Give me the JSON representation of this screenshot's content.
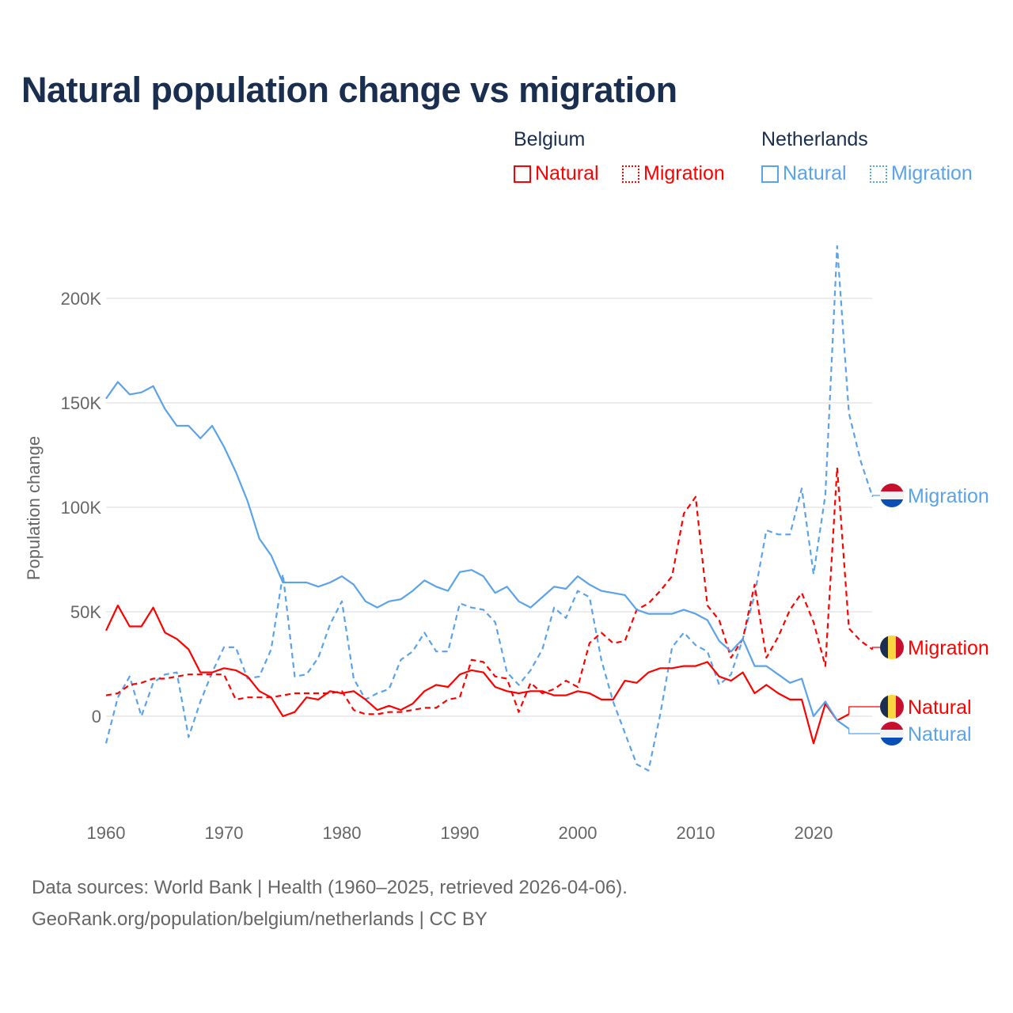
{
  "chart_data": {
    "type": "line",
    "title": "Natural population change vs migration",
    "ylabel": "Population change",
    "xlabel": "",
    "ylim": [
      -40000,
      230000
    ],
    "xlim": [
      1960,
      2025
    ],
    "grid": true,
    "x_ticks": [
      "1960",
      "1970",
      "1980",
      "1990",
      "2000",
      "2010",
      "2020"
    ],
    "y_ticks": [
      {
        "v": 0,
        "label": "0"
      },
      {
        "v": 50000,
        "label": "50K"
      },
      {
        "v": 100000,
        "label": "100K"
      },
      {
        "v": 150000,
        "label": "150K"
      },
      {
        "v": 200000,
        "label": "200K"
      }
    ],
    "legend": {
      "placement": "top-right",
      "groups": [
        {
          "name": "Belgium",
          "items": [
            {
              "label": "Natural",
              "style": "solid"
            },
            {
              "label": "Migration",
              "style": "dotted"
            }
          ],
          "color": "#ff0000"
        },
        {
          "name": "Netherlands",
          "items": [
            {
              "label": "Natural",
              "style": "solid"
            },
            {
              "label": "Migration",
              "style": "dotted"
            }
          ],
          "color": "#5ba3e8"
        }
      ]
    },
    "start_year": 1960,
    "series": [
      {
        "name": "Netherlands Migration",
        "country": "netherlands",
        "label": "Migration",
        "color": "#5ba3e8",
        "dash": true,
        "values": [
          -13,
          9,
          19,
          0,
          16,
          20,
          21,
          -10,
          7,
          21,
          33,
          33,
          18,
          19,
          32,
          68,
          19,
          20,
          28,
          44,
          55,
          18,
          8,
          11,
          13,
          27,
          31,
          40,
          31,
          31,
          54,
          52,
          51,
          45,
          21,
          15,
          22,
          32,
          52,
          47,
          60,
          57,
          27,
          7,
          -8,
          -23,
          -26,
          1,
          33,
          40,
          34,
          31,
          15,
          20,
          37,
          58,
          89,
          87,
          87,
          109,
          68,
          106,
          225,
          145,
          122,
          105
        ],
        "label_y": 105
      },
      {
        "name": "Belgium Migration",
        "country": "belgium",
        "label": "Migration",
        "color": "#ff0000",
        "dash": true,
        "values": [
          10,
          11,
          15,
          16,
          18,
          18,
          19,
          20,
          20,
          20,
          20,
          8,
          9,
          9,
          9,
          10,
          11,
          11,
          11,
          11,
          12,
          3,
          1,
          1,
          2,
          2,
          3,
          4,
          4,
          8,
          9,
          27,
          26,
          19,
          18,
          2,
          16,
          11,
          13,
          17,
          14,
          35,
          40,
          35,
          36,
          51,
          54,
          60,
          67,
          97,
          105,
          53,
          46,
          28,
          37,
          63,
          28,
          38,
          51,
          59,
          45,
          24,
          119,
          42,
          36,
          32
        ],
        "label_y": 32
      },
      {
        "name": "Belgium Natural",
        "country": "belgium",
        "label": "Natural",
        "color": "#ff0000",
        "dash": false,
        "values": [
          41,
          53,
          43,
          43,
          52,
          40,
          37,
          32,
          21,
          21,
          23,
          22,
          19,
          12,
          9,
          0,
          2,
          9,
          8,
          12,
          11,
          12,
          8,
          3,
          5,
          3,
          6,
          12,
          15,
          14,
          20,
          22,
          21,
          14,
          12,
          11,
          12,
          12,
          10,
          10,
          12,
          11,
          8,
          8,
          17,
          16,
          21,
          23,
          23,
          24,
          24,
          26,
          19,
          17,
          21,
          11,
          15,
          11,
          8,
          8,
          -13,
          6,
          -2,
          1
        ],
        "label_y": 4
      },
      {
        "name": "Netherlands Natural",
        "country": "netherlands",
        "label": "Natural",
        "color": "#5ba3e8",
        "dash": false,
        "values": [
          152,
          160,
          154,
          155,
          158,
          147,
          139,
          139,
          133,
          139,
          129,
          117,
          103,
          85,
          77,
          64,
          64,
          64,
          62,
          64,
          67,
          63,
          55,
          52,
          55,
          56,
          60,
          65,
          62,
          60,
          69,
          70,
          67,
          59,
          62,
          55,
          52,
          57,
          62,
          61,
          67,
          63,
          60,
          59,
          58,
          51,
          49,
          49,
          49,
          51,
          49,
          46,
          36,
          31,
          37,
          24,
          24,
          20,
          16,
          18,
          0,
          7,
          -2,
          -6
        ],
        "label_y": -9
      }
    ],
    "value_unit": "thousands"
  },
  "footer": {
    "line1": "Data sources: World Bank | Health (1960–2025, retrieved 2026-04-06).",
    "line2": "GeoRank.org/population/belgium/netherlands | CC BY"
  },
  "colors": {
    "title": "#1a2e4f",
    "belgium": "#ff0000",
    "netherlands": "#5ba3e8",
    "grid": "#e6e6e6"
  }
}
